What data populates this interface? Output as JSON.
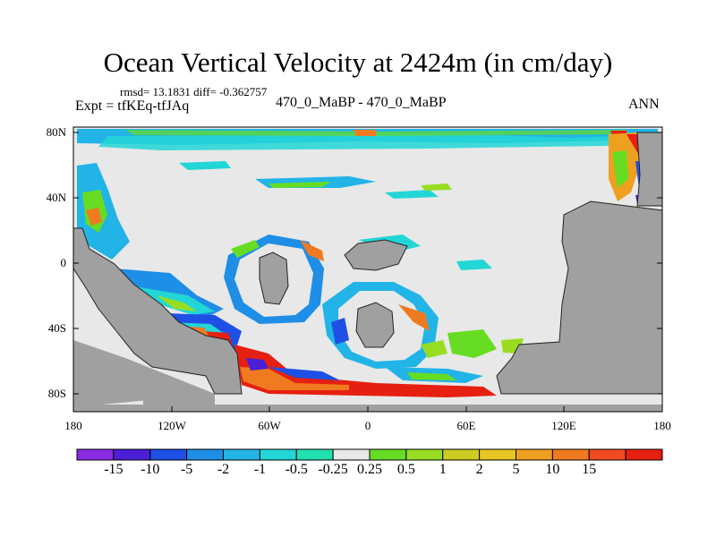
{
  "title": "Ocean Vertical Velocity at 2424m (in cm/day)",
  "stats": "rmsd= 13.1831 diff= -0.362757",
  "experiment": "Expt = tfKEq-tfJAq",
  "runs": "470_0_MaBP - 470_0_MaBP",
  "season": "ANN",
  "colors": {
    "land": "#a0a0a0",
    "near_zero": "#e8e8e8",
    "coastline": "#222222"
  },
  "map": {
    "lat_ticks": [
      "80N",
      "40N",
      "0",
      "40S",
      "80S"
    ],
    "lon_ticks": [
      "180",
      "120W",
      "60W",
      "0",
      "60E",
      "120E",
      "180"
    ]
  },
  "colorbar": {
    "colors": [
      "#8a2be2",
      "#4b1fd6",
      "#1e50e6",
      "#1e8ee6",
      "#22b4e6",
      "#22d6d6",
      "#22e0b0",
      "#e8e8e8",
      "#66dd22",
      "#99dd22",
      "#cccc22",
      "#e6c622",
      "#f0a020",
      "#f07a20",
      "#f04a20",
      "#e62010"
    ],
    "labels": [
      "-15",
      "-10",
      "-5",
      "-2",
      "-1",
      "-0.5",
      "-0.25",
      "0.25",
      "0.5",
      "1",
      "2",
      "5",
      "10",
      "15"
    ]
  }
}
